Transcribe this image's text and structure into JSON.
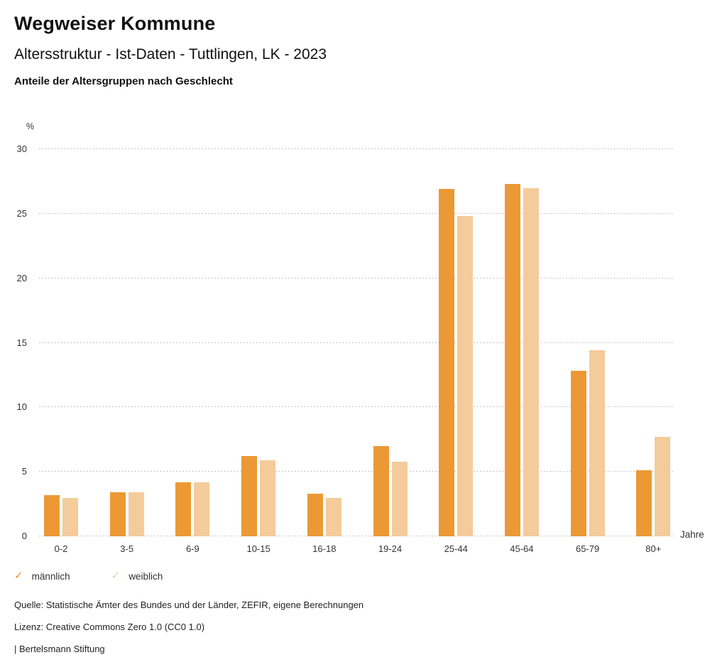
{
  "header": {
    "title": "Wegweiser Kommune",
    "subtitle": "Altersstruktur - Ist-Daten - Tuttlingen, LK - 2023",
    "chart_title": "Anteile der Altersgruppen nach Geschlecht"
  },
  "chart_data": {
    "type": "bar",
    "title": "Anteile der Altersgruppen nach Geschlecht",
    "categories": [
      "0-2",
      "3-5",
      "6-9",
      "10-15",
      "16-18",
      "19-24",
      "25-44",
      "45-64",
      "65-79",
      "80+"
    ],
    "series": [
      {
        "name": "männlich",
        "color": "#EC9935",
        "values": [
          3.2,
          3.4,
          4.2,
          6.2,
          3.3,
          7.0,
          26.9,
          27.3,
          12.8,
          5.1
        ]
      },
      {
        "name": "weiblich",
        "color": "#F4CB9B",
        "values": [
          3.0,
          3.4,
          4.2,
          5.9,
          3.0,
          5.8,
          24.8,
          27.0,
          14.4,
          7.7
        ]
      }
    ],
    "y_unit": "%",
    "x_unit": "Jahre",
    "ylim": [
      0,
      30
    ],
    "yticks": [
      0,
      5,
      10,
      15,
      20,
      25,
      30
    ],
    "grid": "horizontal-dotted",
    "legend_position": "bottom-left"
  },
  "legend": {
    "check_glyph": "✓",
    "items": [
      {
        "label": "männlich",
        "checked": true,
        "color": "#EC9935"
      },
      {
        "label": "weiblich",
        "checked": true,
        "color": "#F4CB9B"
      }
    ]
  },
  "footer": {
    "source": "Quelle: Statistische Ämter des Bundes und der Länder, ZEFIR, eigene Berechnungen",
    "license": "Lizenz: Creative Commons Zero 1.0 (CC0 1.0)",
    "brand": "| Bertelsmann Stiftung"
  },
  "colors": {
    "maennlich": "#EC9935",
    "weiblich": "#F4CB9B",
    "gridline": "#b5b5b5",
    "text": "#1a1a1a"
  }
}
